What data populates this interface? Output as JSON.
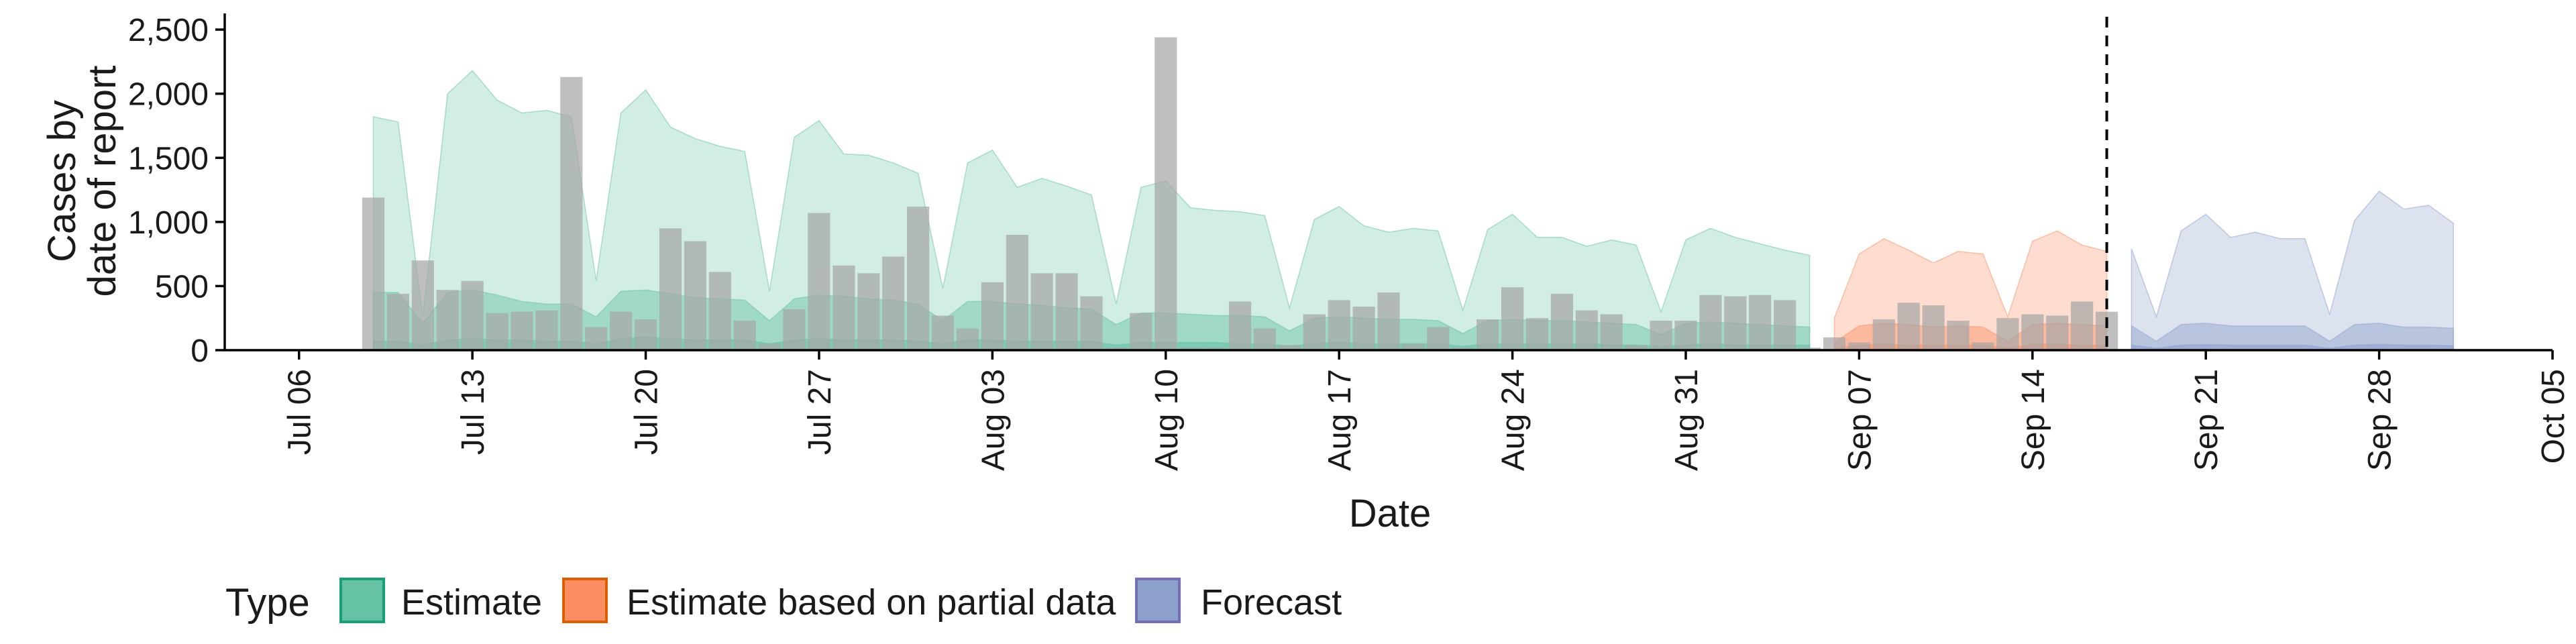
{
  "chart_data": {
    "type": "bar+area",
    "ylabel": [
      "Cases by",
      "date of report"
    ],
    "xlabel": "Date",
    "ylim": [
      0,
      2600
    ],
    "yticks": [
      0,
      500,
      1000,
      1500,
      2000,
      2500
    ],
    "ytick_labels": [
      "0",
      "500",
      "1,000",
      "1,500",
      "2,000",
      "2,500"
    ],
    "xlim": [
      "2020-07-03",
      "2020-10-05"
    ],
    "xticks": [
      "2020-07-06",
      "2020-07-13",
      "2020-07-20",
      "2020-07-27",
      "2020-08-03",
      "2020-08-10",
      "2020-08-17",
      "2020-08-24",
      "2020-08-31",
      "2020-09-07",
      "2020-09-14",
      "2020-09-21",
      "2020-09-28",
      "2020-10-05"
    ],
    "xtick_labels": [
      "Jul 06",
      "Jul 13",
      "Jul 20",
      "Jul 27",
      "Aug 03",
      "Aug 10",
      "Aug 17",
      "Aug 24",
      "Aug 31",
      "Sep 07",
      "Sep 14",
      "Sep 21",
      "Sep 28",
      "Oct 05"
    ],
    "vline_date": "2020-09-17",
    "bars": {
      "name": "Reported cases",
      "color": "#a6a6a6",
      "dates": [
        "2020-07-09",
        "2020-07-10",
        "2020-07-11",
        "2020-07-12",
        "2020-07-13",
        "2020-07-14",
        "2020-07-15",
        "2020-07-16",
        "2020-07-17",
        "2020-07-18",
        "2020-07-19",
        "2020-07-20",
        "2020-07-21",
        "2020-07-22",
        "2020-07-23",
        "2020-07-24",
        "2020-07-25",
        "2020-07-26",
        "2020-07-27",
        "2020-07-28",
        "2020-07-29",
        "2020-07-30",
        "2020-07-31",
        "2020-08-01",
        "2020-08-02",
        "2020-08-03",
        "2020-08-04",
        "2020-08-05",
        "2020-08-06",
        "2020-08-07",
        "2020-08-08",
        "2020-08-09",
        "2020-08-10",
        "2020-08-11",
        "2020-08-12",
        "2020-08-13",
        "2020-08-14",
        "2020-08-15",
        "2020-08-16",
        "2020-08-17",
        "2020-08-18",
        "2020-08-19",
        "2020-08-20",
        "2020-08-21",
        "2020-08-22",
        "2020-08-23",
        "2020-08-24",
        "2020-08-25",
        "2020-08-26",
        "2020-08-27",
        "2020-08-28",
        "2020-08-29",
        "2020-08-30",
        "2020-08-31",
        "2020-09-01",
        "2020-09-02",
        "2020-09-03",
        "2020-09-04",
        "2020-09-05",
        "2020-09-06",
        "2020-09-07",
        "2020-09-08",
        "2020-09-09",
        "2020-09-10",
        "2020-09-11",
        "2020-09-12",
        "2020-09-13",
        "2020-09-14",
        "2020-09-15",
        "2020-09-16",
        "2020-09-17"
      ],
      "values": [
        1190,
        440,
        700,
        470,
        540,
        290,
        300,
        310,
        2130,
        180,
        300,
        240,
        950,
        850,
        610,
        230,
        50,
        320,
        1070,
        660,
        600,
        730,
        1120,
        270,
        170,
        530,
        900,
        600,
        600,
        420,
        20,
        290,
        2440,
        20,
        20,
        380,
        170,
        40,
        280,
        390,
        340,
        450,
        50,
        180,
        20,
        240,
        490,
        250,
        440,
        310,
        280,
        40,
        230,
        230,
        430,
        420,
        430,
        390,
        20,
        100,
        60,
        240,
        370,
        350,
        230,
        60,
        250,
        280,
        270,
        380,
        300
      ]
    },
    "bands": [
      {
        "name": "Estimate",
        "color": "#66c2a5",
        "dates": [
          "2020-07-09",
          "2020-07-10",
          "2020-07-11",
          "2020-07-12",
          "2020-07-13",
          "2020-07-14",
          "2020-07-15",
          "2020-07-16",
          "2020-07-17",
          "2020-07-18",
          "2020-07-19",
          "2020-07-20",
          "2020-07-21",
          "2020-07-22",
          "2020-07-23",
          "2020-07-24",
          "2020-07-25",
          "2020-07-26",
          "2020-07-27",
          "2020-07-28",
          "2020-07-29",
          "2020-07-30",
          "2020-07-31",
          "2020-08-01",
          "2020-08-02",
          "2020-08-03",
          "2020-08-04",
          "2020-08-05",
          "2020-08-06",
          "2020-08-07",
          "2020-08-08",
          "2020-08-09",
          "2020-08-10",
          "2020-08-11",
          "2020-08-12",
          "2020-08-13",
          "2020-08-14",
          "2020-08-15",
          "2020-08-16",
          "2020-08-17",
          "2020-08-18",
          "2020-08-19",
          "2020-08-20",
          "2020-08-21",
          "2020-08-22",
          "2020-08-23",
          "2020-08-24",
          "2020-08-25",
          "2020-08-26",
          "2020-08-27",
          "2020-08-28",
          "2020-08-29",
          "2020-08-30",
          "2020-08-31",
          "2020-09-01",
          "2020-09-02",
          "2020-09-03",
          "2020-09-04",
          "2020-09-05"
        ],
        "upper": [
          1820,
          1780,
          260,
          2000,
          2180,
          1950,
          1850,
          1870,
          1820,
          540,
          1850,
          2030,
          1740,
          1650,
          1590,
          1550,
          460,
          1660,
          1790,
          1530,
          1520,
          1460,
          1380,
          480,
          1460,
          1560,
          1270,
          1340,
          1280,
          1210,
          360,
          1270,
          1320,
          1110,
          1090,
          1080,
          1050,
          330,
          1020,
          1120,
          970,
          920,
          950,
          930,
          310,
          940,
          1060,
          880,
          880,
          810,
          860,
          820,
          300,
          860,
          950,
          880,
          830,
          780,
          740
        ],
        "inner_upper": [
          450,
          450,
          210,
          450,
          470,
          430,
          380,
          360,
          360,
          260,
          460,
          470,
          440,
          410,
          400,
          390,
          230,
          400,
          430,
          420,
          400,
          390,
          360,
          230,
          380,
          380,
          360,
          350,
          330,
          320,
          200,
          290,
          290,
          280,
          270,
          270,
          260,
          150,
          250,
          260,
          250,
          240,
          240,
          230,
          130,
          230,
          240,
          230,
          230,
          220,
          210,
          200,
          120,
          210,
          220,
          210,
          200,
          190,
          180
        ],
        "inner_lower": [
          70,
          70,
          40,
          80,
          90,
          80,
          80,
          70,
          70,
          50,
          90,
          100,
          90,
          80,
          80,
          80,
          50,
          80,
          90,
          80,
          80,
          80,
          70,
          50,
          80,
          80,
          70,
          70,
          70,
          70,
          40,
          60,
          60,
          60,
          60,
          50,
          50,
          30,
          50,
          60,
          50,
          50,
          50,
          50,
          30,
          50,
          50,
          50,
          50,
          50,
          40,
          40,
          30,
          40,
          50,
          40,
          40,
          40,
          40
        ]
      },
      {
        "name": "Estimate based on partial data",
        "color": "#fc8d62",
        "dates": [
          "2020-09-06",
          "2020-09-07",
          "2020-09-08",
          "2020-09-09",
          "2020-09-10",
          "2020-09-11",
          "2020-09-12",
          "2020-09-13",
          "2020-09-14",
          "2020-09-15",
          "2020-09-16",
          "2020-09-17"
        ],
        "upper": [
          250,
          750,
          870,
          780,
          680,
          770,
          750,
          260,
          850,
          930,
          820,
          770
        ],
        "inner_upper": [
          60,
          190,
          210,
          200,
          180,
          190,
          180,
          70,
          200,
          210,
          200,
          190
        ],
        "inner_lower": [
          15,
          40,
          45,
          40,
          40,
          40,
          40,
          15,
          45,
          45,
          40,
          40
        ]
      },
      {
        "name": "Forecast",
        "color": "#8da0cb",
        "dates": [
          "2020-09-18",
          "2020-09-19",
          "2020-09-20",
          "2020-09-21",
          "2020-09-22",
          "2020-09-23",
          "2020-09-24",
          "2020-09-25",
          "2020-09-26",
          "2020-09-27",
          "2020-09-28",
          "2020-09-29",
          "2020-09-30",
          "2020-10-01"
        ],
        "upper": [
          790,
          260,
          930,
          1060,
          880,
          920,
          870,
          870,
          280,
          1010,
          1240,
          1100,
          1130,
          990
        ],
        "inner_upper": [
          190,
          70,
          200,
          210,
          190,
          190,
          190,
          190,
          70,
          200,
          210,
          180,
          180,
          170
        ],
        "inner_lower": [
          40,
          15,
          40,
          45,
          40,
          40,
          40,
          40,
          15,
          40,
          45,
          40,
          40,
          35
        ]
      }
    ],
    "legend": {
      "title": "Type",
      "placement": "bottom-left",
      "items": [
        {
          "label": "Estimate",
          "fill": "#66c2a5",
          "border": "#1b9e77"
        },
        {
          "label": "Estimate based on partial data",
          "fill": "#fc8d62",
          "border": "#d95f02"
        },
        {
          "label": "Forecast",
          "fill": "#8da0cb",
          "border": "#7570b3"
        }
      ]
    }
  }
}
